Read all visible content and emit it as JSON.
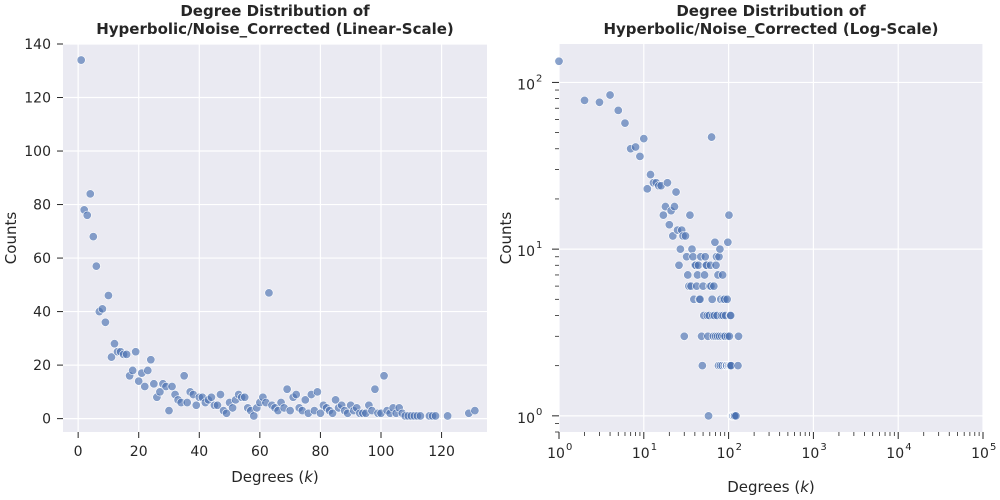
{
  "chart_data": [
    {
      "type": "scatter",
      "title_line1": "Degree Distribution of",
      "title_line2": "Hyperbolic/Noise_Corrected (Linear-Scale)",
      "xlabel": "Degrees (k)",
      "ylabel": "Counts",
      "xlim": [
        -5,
        135
      ],
      "ylim": [
        -5,
        140
      ],
      "xticks": [
        0,
        20,
        40,
        60,
        80,
        100,
        120
      ],
      "yticks": [
        0,
        20,
        40,
        60,
        80,
        100,
        120,
        140
      ],
      "x_scale": "linear",
      "y_scale": "linear",
      "grid": true,
      "point_color": "#4c72b0",
      "background": "#eaeaf2",
      "x": [
        1,
        2,
        3,
        4,
        5,
        6,
        7,
        8,
        9,
        10,
        11,
        12,
        13,
        14,
        15,
        16,
        17,
        18,
        19,
        20,
        21,
        22,
        23,
        24,
        25,
        26,
        27,
        28,
        29,
        30,
        31,
        32,
        33,
        34,
        35,
        36,
        37,
        38,
        39,
        40,
        41,
        42,
        43,
        44,
        45,
        46,
        47,
        48,
        49,
        50,
        51,
        52,
        53,
        54,
        55,
        56,
        57,
        58,
        59,
        60,
        61,
        62,
        63,
        64,
        65,
        66,
        67,
        68,
        69,
        70,
        71,
        72,
        73,
        74,
        75,
        76,
        77,
        78,
        79,
        80,
        81,
        82,
        83,
        84,
        85,
        86,
        87,
        88,
        89,
        90,
        91,
        92,
        93,
        94,
        95,
        96,
        97,
        98,
        99,
        100,
        101,
        102,
        103,
        104,
        105,
        106,
        107,
        108,
        109,
        110,
        111,
        112,
        113,
        116,
        117,
        118,
        122,
        129,
        131
      ],
      "y": [
        134,
        78,
        76,
        84,
        68,
        57,
        40,
        41,
        36,
        46,
        23,
        28,
        25,
        25,
        24,
        24,
        16,
        18,
        25,
        14,
        17,
        12,
        18,
        22,
        13,
        8,
        10,
        13,
        12,
        3,
        12,
        9,
        7,
        6,
        16,
        6,
        10,
        9,
        5,
        8,
        8,
        6,
        7,
        8,
        5,
        5,
        9,
        3,
        2,
        6,
        4,
        7,
        9,
        8,
        8,
        4,
        3,
        1,
        4,
        6,
        8,
        6,
        47,
        5,
        4,
        3,
        6,
        4,
        11,
        3,
        8,
        9,
        4,
        3,
        7,
        2,
        9,
        3,
        10,
        2,
        5,
        4,
        3,
        2,
        7,
        4,
        5,
        3,
        2,
        5,
        3,
        4,
        2,
        2,
        2,
        5,
        3,
        11,
        2,
        2,
        16,
        3,
        2,
        4,
        2,
        4,
        2,
        1,
        1,
        1,
        1,
        1,
        1,
        1,
        1,
        1,
        1,
        2,
        3
      ]
    },
    {
      "type": "scatter",
      "title_line1": "Degree Distribution of",
      "title_line2": "Hyperbolic/Noise_Corrected (Log-Scale)",
      "xlabel": "Degrees (k)",
      "ylabel": "Counts",
      "x_scale": "log",
      "y_scale": "log",
      "xlim": [
        1,
        100000
      ],
      "ylim": [
        0.8,
        170
      ],
      "xticks": [
        1,
        10,
        100,
        1000,
        10000,
        100000
      ],
      "xtick_exponents": [
        "0",
        "1",
        "2",
        "3",
        "4",
        "5"
      ],
      "yticks": [
        1,
        10,
        100
      ],
      "ytick_exponents": [
        "0",
        "1",
        "2"
      ],
      "tick_base": "10",
      "grid": true,
      "point_color": "#4c72b0",
      "background": "#eaeaf2",
      "x": [
        1,
        2,
        3,
        4,
        5,
        6,
        7,
        8,
        9,
        10,
        11,
        12,
        13,
        14,
        15,
        16,
        17,
        18,
        19,
        20,
        21,
        22,
        23,
        24,
        25,
        26,
        27,
        28,
        29,
        30,
        31,
        32,
        33,
        34,
        35,
        36,
        37,
        38,
        39,
        40,
        41,
        42,
        43,
        44,
        45,
        46,
        47,
        48,
        49,
        50,
        51,
        52,
        53,
        54,
        55,
        56,
        57,
        58,
        59,
        60,
        61,
        62,
        63,
        64,
        65,
        66,
        67,
        68,
        69,
        70,
        71,
        72,
        73,
        74,
        75,
        76,
        77,
        78,
        79,
        80,
        81,
        82,
        83,
        84,
        85,
        86,
        87,
        88,
        89,
        90,
        91,
        92,
        93,
        94,
        95,
        96,
        97,
        98,
        99,
        100,
        101,
        102,
        103,
        104,
        105,
        106,
        107,
        108,
        109,
        110,
        111,
        112,
        113,
        116,
        117,
        118,
        122,
        129,
        131
      ],
      "y": [
        134,
        78,
        76,
        84,
        68,
        57,
        40,
        41,
        36,
        46,
        23,
        28,
        25,
        25,
        24,
        24,
        16,
        18,
        25,
        14,
        17,
        12,
        18,
        22,
        13,
        8,
        10,
        13,
        12,
        3,
        12,
        9,
        7,
        6,
        16,
        6,
        10,
        9,
        5,
        8,
        8,
        6,
        7,
        8,
        5,
        5,
        9,
        3,
        2,
        6,
        4,
        7,
        9,
        8,
        8,
        4,
        3,
        1,
        4,
        6,
        8,
        6,
        47,
        5,
        4,
        3,
        6,
        4,
        11,
        3,
        8,
        9,
        4,
        3,
        7,
        2,
        9,
        3,
        10,
        2,
        5,
        4,
        3,
        2,
        7,
        4,
        5,
        3,
        2,
        5,
        3,
        4,
        2,
        2,
        2,
        5,
        3,
        11,
        2,
        2,
        16,
        3,
        2,
        4,
        2,
        4,
        2,
        1,
        1,
        1,
        1,
        1,
        1,
        1,
        1,
        1,
        1,
        2,
        3
      ]
    }
  ]
}
